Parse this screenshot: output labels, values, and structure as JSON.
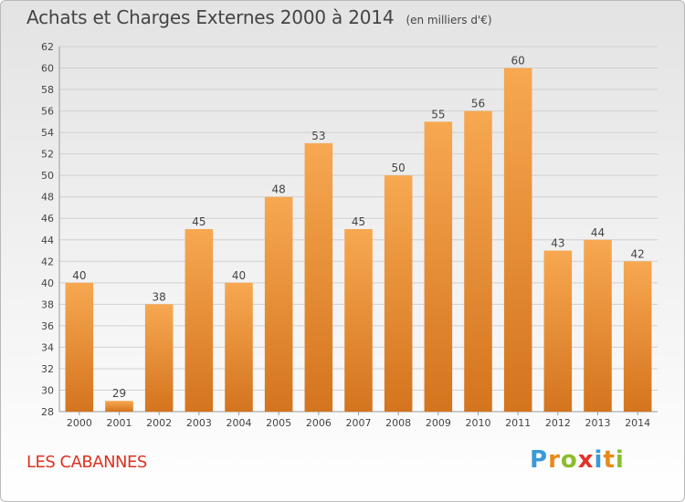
{
  "chart_data": {
    "type": "bar",
    "title": "Achats et Charges Externes 2000 à 2014",
    "subtitle": "(en milliers d'€)",
    "categories": [
      "2000",
      "2001",
      "2002",
      "2003",
      "2004",
      "2005",
      "2006",
      "2007",
      "2008",
      "2009",
      "2010",
      "2011",
      "2012",
      "2013",
      "2014"
    ],
    "values": [
      40,
      29,
      38,
      45,
      40,
      48,
      53,
      45,
      50,
      55,
      56,
      60,
      43,
      44,
      42
    ],
    "ylim": [
      28,
      62
    ],
    "yticks": [
      28,
      30,
      32,
      34,
      36,
      38,
      40,
      42,
      44,
      46,
      48,
      50,
      52,
      54,
      56,
      58,
      60,
      62
    ],
    "grid": true,
    "legend": "none",
    "bar_color_top": "#f7a851",
    "bar_color_bottom": "#d4741e"
  },
  "footer": {
    "commune": "LES CABANNES",
    "brand": "Proxiti",
    "brand_colors": [
      "#3a9ad9",
      "#e88a1a",
      "#8bbd2c",
      "#e0332a",
      "#3a9ad9",
      "#e88a1a",
      "#8bbd2c"
    ]
  }
}
